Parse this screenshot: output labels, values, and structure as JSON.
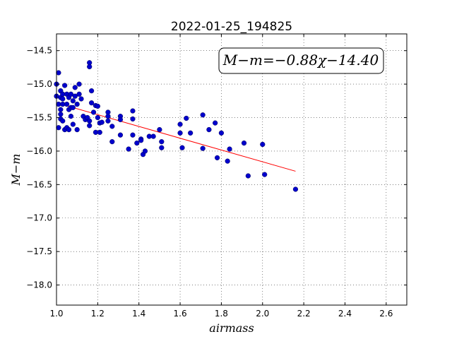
{
  "chart_data": {
    "type": "scatter",
    "title": "2022-01-25_194825",
    "xlabel": "airmass",
    "ylabel": "M−m",
    "xlim": [
      1.0,
      2.7
    ],
    "ylim": [
      -18.3,
      -14.25
    ],
    "y_inverted": true,
    "grid": true,
    "x_ticks": [
      1.0,
      1.2,
      1.4,
      1.6,
      1.8,
      2.0,
      2.2,
      2.4,
      2.6
    ],
    "x_tick_labels": [
      "1.0",
      "1.2",
      "1.4",
      "1.6",
      "1.8",
      "2.0",
      "2.2",
      "2.4",
      "2.6"
    ],
    "y_ticks": [
      -14.5,
      -15.0,
      -15.5,
      -16.0,
      -16.5,
      -17.0,
      -17.5,
      -18.0
    ],
    "y_tick_labels": [
      "−14.5",
      "−15.0",
      "−15.5",
      "−16.0",
      "−16.5",
      "−17.0",
      "−17.5",
      "−18.0"
    ],
    "annotation": "M−m=−0.88χ−14.40",
    "fit": {
      "slope": -0.88,
      "intercept": -14.4,
      "x_range": [
        1.0,
        2.16
      ],
      "color": "#ff0000"
    },
    "point_color": "#0000cc",
    "points": [
      [
        1.0,
        -15.0
      ],
      [
        1.0,
        -15.18
      ],
      [
        1.01,
        -14.83
      ],
      [
        1.01,
        -15.3
      ],
      [
        1.01,
        -15.65
      ],
      [
        1.02,
        -15.1
      ],
      [
        1.02,
        -15.2
      ],
      [
        1.02,
        -15.38
      ],
      [
        1.02,
        -15.45
      ],
      [
        1.02,
        -15.52
      ],
      [
        1.03,
        -15.15
      ],
      [
        1.03,
        -15.22
      ],
      [
        1.03,
        -15.3
      ],
      [
        1.03,
        -15.55
      ],
      [
        1.04,
        -15.02
      ],
      [
        1.04,
        -15.68
      ],
      [
        1.05,
        -15.15
      ],
      [
        1.05,
        -15.3
      ],
      [
        1.05,
        -15.65
      ],
      [
        1.06,
        -15.2
      ],
      [
        1.06,
        -15.38
      ],
      [
        1.06,
        -15.68
      ],
      [
        1.07,
        -15.15
      ],
      [
        1.07,
        -15.35
      ],
      [
        1.07,
        -15.48
      ],
      [
        1.08,
        -15.25
      ],
      [
        1.08,
        -15.35
      ],
      [
        1.08,
        -15.6
      ],
      [
        1.09,
        -15.18
      ],
      [
        1.09,
        -15.05
      ],
      [
        1.1,
        -15.3
      ],
      [
        1.1,
        -15.68
      ],
      [
        1.11,
        -15.0
      ],
      [
        1.11,
        -15.15
      ],
      [
        1.12,
        -15.22
      ],
      [
        1.13,
        -15.48
      ],
      [
        1.14,
        -15.53
      ],
      [
        1.15,
        -15.5
      ],
      [
        1.16,
        -14.68
      ],
      [
        1.16,
        -14.74
      ],
      [
        1.16,
        -15.55
      ],
      [
        1.16,
        -15.62
      ],
      [
        1.17,
        -15.1
      ],
      [
        1.17,
        -15.28
      ],
      [
        1.18,
        -15.42
      ],
      [
        1.19,
        -15.32
      ],
      [
        1.19,
        -15.72
      ],
      [
        1.2,
        -15.33
      ],
      [
        1.2,
        -15.5
      ],
      [
        1.21,
        -15.72
      ],
      [
        1.21,
        -15.58
      ],
      [
        1.22,
        -15.57
      ],
      [
        1.25,
        -15.42
      ],
      [
        1.25,
        -15.48
      ],
      [
        1.25,
        -15.55
      ],
      [
        1.27,
        -15.63
      ],
      [
        1.27,
        -15.86
      ],
      [
        1.31,
        -15.48
      ],
      [
        1.31,
        -15.53
      ],
      [
        1.31,
        -15.76
      ],
      [
        1.35,
        -15.97
      ],
      [
        1.37,
        -15.4
      ],
      [
        1.37,
        -15.52
      ],
      [
        1.37,
        -15.76
      ],
      [
        1.39,
        -15.88
      ],
      [
        1.41,
        -15.82
      ],
      [
        1.41,
        -15.84
      ],
      [
        1.42,
        -16.05
      ],
      [
        1.43,
        -16.0
      ],
      [
        1.45,
        -15.78
      ],
      [
        1.47,
        -15.78
      ],
      [
        1.5,
        -15.68
      ],
      [
        1.51,
        -15.86
      ],
      [
        1.51,
        -15.95
      ],
      [
        1.6,
        -15.6
      ],
      [
        1.6,
        -15.73
      ],
      [
        1.61,
        -15.95
      ],
      [
        1.63,
        -15.51
      ],
      [
        1.65,
        -15.73
      ],
      [
        1.71,
        -15.46
      ],
      [
        1.71,
        -15.96
      ],
      [
        1.74,
        -15.68
      ],
      [
        1.77,
        -15.58
      ],
      [
        1.78,
        -16.1
      ],
      [
        1.8,
        -15.73
      ],
      [
        1.83,
        -16.15
      ],
      [
        1.84,
        -15.97
      ],
      [
        1.91,
        -15.88
      ],
      [
        1.93,
        -16.37
      ],
      [
        2.0,
        -15.9
      ],
      [
        2.01,
        -16.35
      ],
      [
        2.16,
        -16.57
      ]
    ]
  }
}
